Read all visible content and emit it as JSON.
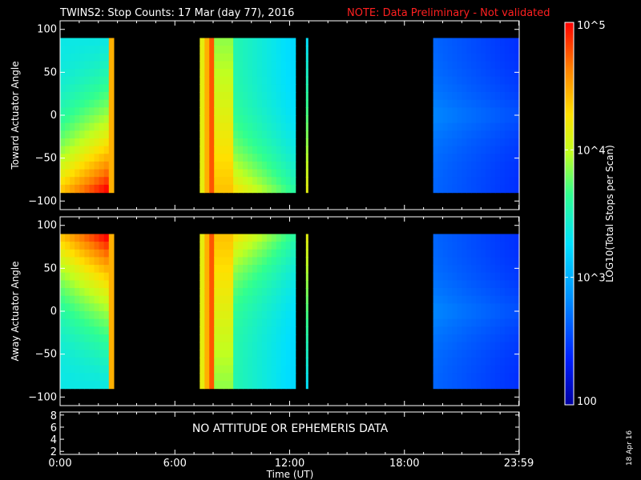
{
  "title": "TWINS2: Stop Counts: 17 Mar (day  77), 2016",
  "note": "NOTE: Data Preliminary - Not validated",
  "date_stamp": "18 Apr 16",
  "no_data_message": "NO ATTITUDE OR EPHEMERIS DATA",
  "colors": {
    "background": "#000000",
    "axes": "#ffffff",
    "note": "#ff2020"
  },
  "chart_data": [
    {
      "type": "heatmap",
      "ylabel": "Toward Actuator Angle",
      "ylim": [
        -110,
        110
      ],
      "yticks": [
        100,
        50,
        0,
        -50,
        -100
      ],
      "xlim_hours": [
        0,
        24
      ],
      "data_y_range": [
        -90,
        90
      ],
      "data_segments_hours": [
        [
          0.0,
          2.8
        ],
        [
          7.3,
          12.3
        ],
        [
          12.85,
          12.95
        ],
        [
          19.5,
          24.0
        ]
      ]
    },
    {
      "type": "heatmap",
      "ylabel": "Away Actuator Angle",
      "ylim": [
        -110,
        110
      ],
      "yticks": [
        100,
        50,
        0,
        -50,
        -100
      ],
      "xlim_hours": [
        0,
        24
      ],
      "data_y_range": [
        -90,
        90
      ],
      "data_segments_hours": [
        [
          0.0,
          2.8
        ],
        [
          7.3,
          12.3
        ],
        [
          12.85,
          12.95
        ],
        [
          19.5,
          24.0
        ]
      ]
    },
    {
      "type": "line",
      "ylim": [
        1.5,
        8.5
      ],
      "yticks": [
        8,
        6,
        4,
        2
      ],
      "empty": true
    }
  ],
  "x_axis": {
    "label": "Time (UT)",
    "ticks": [
      {
        "hour": 0,
        "label": "0:00"
      },
      {
        "hour": 6,
        "label": "6:00"
      },
      {
        "hour": 12,
        "label": "12:00"
      },
      {
        "hour": 18,
        "label": "18:00"
      },
      {
        "hour": 23.98,
        "label": "23:59"
      }
    ]
  },
  "colorbar": {
    "label": "LOG10(Total Stops per Scan)",
    "scale": "log",
    "range": [
      100,
      100000
    ],
    "ticks": [
      {
        "value": 100000,
        "label": "10^5"
      },
      {
        "value": 10000,
        "label": "10^4"
      },
      {
        "value": 1000,
        "label": "10^3"
      },
      {
        "value": 100,
        "label": "100"
      }
    ]
  }
}
